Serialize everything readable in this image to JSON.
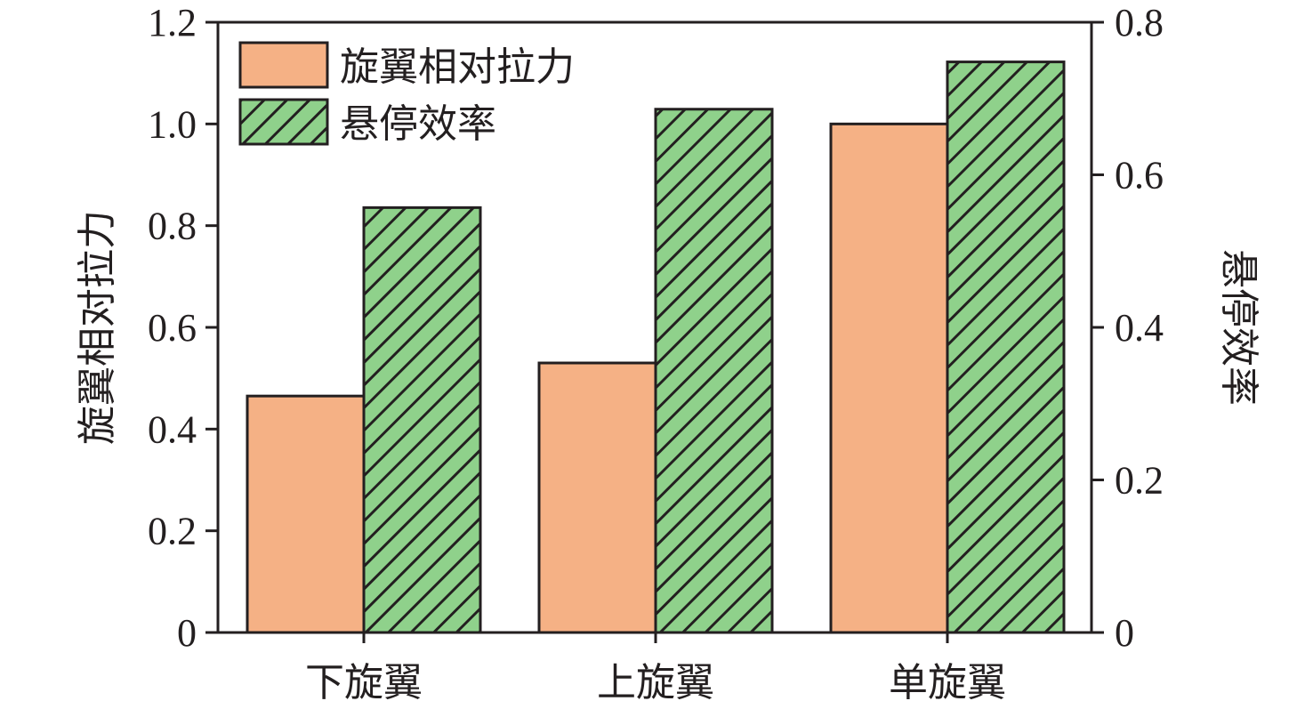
{
  "chart_data": {
    "type": "bar",
    "categories": [
      "下旋翼",
      "上旋翼",
      "单旋翼"
    ],
    "series": [
      {
        "name": "旋翼相对拉力",
        "axis": "left",
        "values": [
          0.465,
          0.53,
          1.0
        ],
        "color": "#f5b185",
        "pattern": "solid"
      },
      {
        "name": "悬停效率",
        "axis": "right",
        "values": [
          0.557,
          0.686,
          0.748
        ],
        "color": "#8fd18b",
        "pattern": "hatch"
      }
    ],
    "ylabel_left": "旋翼相对拉力",
    "ylabel_right": "悬停效率",
    "ylim_left": [
      0,
      1.2
    ],
    "ylim_right": [
      0,
      0.8
    ],
    "yticks_left": [
      "0",
      "0.2",
      "0.4",
      "0.6",
      "0.8",
      "1.0",
      "1.2"
    ],
    "yticks_right": [
      "0",
      "0.2",
      "0.4",
      "0.6",
      "0.8"
    ],
    "grid": false,
    "legend_position": "top-left"
  }
}
